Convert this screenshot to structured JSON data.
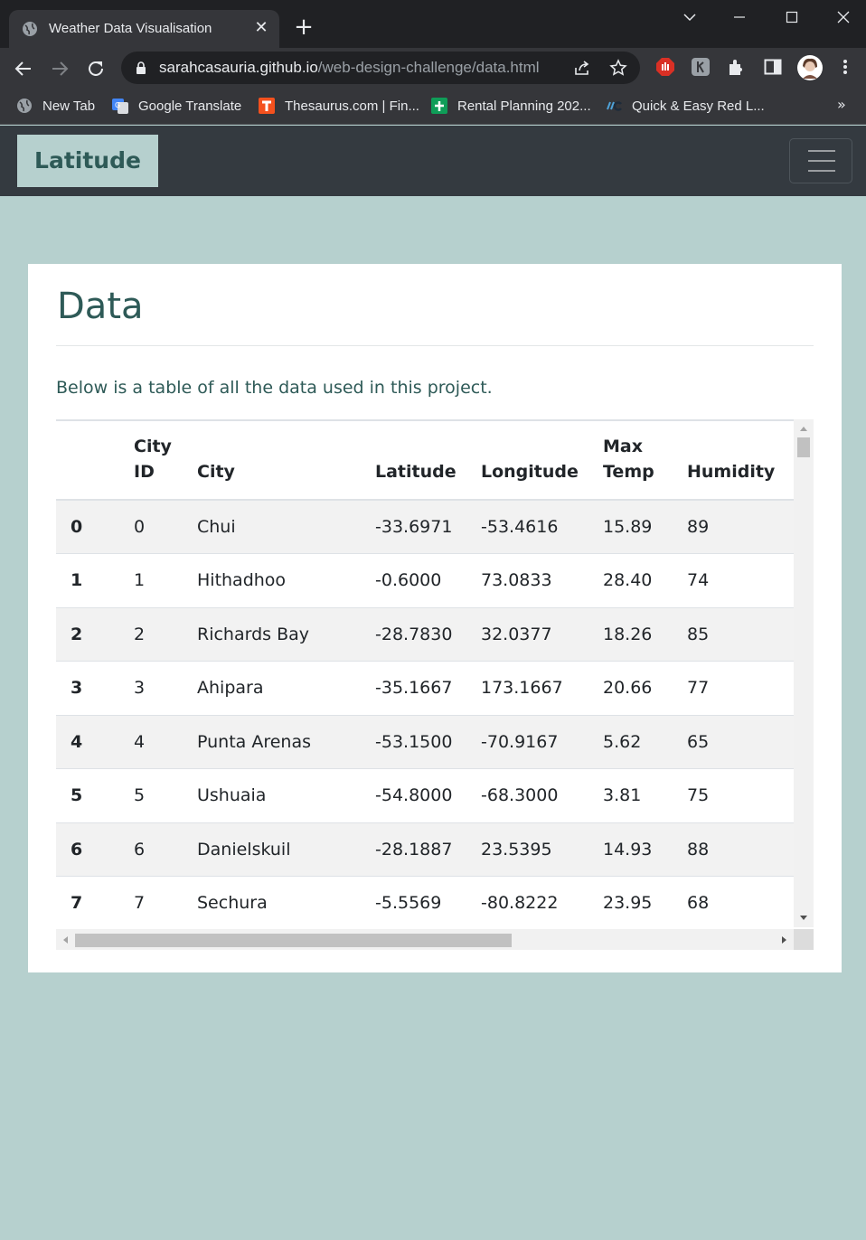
{
  "browser": {
    "tab_title": "Weather Data Visualisation",
    "url_host": "sarahcasauria.github.io",
    "url_path": "/web-design-challenge/data.html",
    "bookmarks": [
      {
        "label": "New Tab",
        "icon": "globe-icon"
      },
      {
        "label": "Google Translate",
        "icon": "google-translate-icon"
      },
      {
        "label": "Thesaurus.com | Fin...",
        "icon": "thesaurus-icon"
      },
      {
        "label": "Rental Planning 202...",
        "icon": "sheets-icon"
      },
      {
        "label": "Quick & Easy Red L...",
        "icon": "qe-icon"
      }
    ],
    "more_bookmarks": "»"
  },
  "site": {
    "brand": "Latitude"
  },
  "page": {
    "heading": "Data",
    "intro": "Below is a table of all the data used in this project."
  },
  "table": {
    "headers": [
      {
        "line1": "",
        "line2": ""
      },
      {
        "line1": "City",
        "line2": "ID"
      },
      {
        "line1": "",
        "line2": "City"
      },
      {
        "line1": "",
        "line2": "Latitude"
      },
      {
        "line1": "",
        "line2": "Longitude"
      },
      {
        "line1": "Max",
        "line2": "Temp"
      },
      {
        "line1": "",
        "line2": "Humidity"
      }
    ],
    "rows": [
      [
        "0",
        "0",
        "Chui",
        "-33.6971",
        "-53.4616",
        "15.89",
        "89"
      ],
      [
        "1",
        "1",
        "Hithadhoo",
        "-0.6000",
        "73.0833",
        "28.40",
        "74"
      ],
      [
        "2",
        "2",
        "Richards Bay",
        "-28.7830",
        "32.0377",
        "18.26",
        "85"
      ],
      [
        "3",
        "3",
        "Ahipara",
        "-35.1667",
        "173.1667",
        "20.66",
        "77"
      ],
      [
        "4",
        "4",
        "Punta Arenas",
        "-53.1500",
        "-70.9167",
        "5.62",
        "65"
      ],
      [
        "5",
        "5",
        "Ushuaia",
        "-54.8000",
        "-68.3000",
        "3.81",
        "75"
      ],
      [
        "6",
        "6",
        "Danielskuil",
        "-28.1887",
        "23.5395",
        "14.93",
        "88"
      ],
      [
        "7",
        "7",
        "Sechura",
        "-5.5569",
        "-80.8222",
        "23.95",
        "68"
      ]
    ]
  },
  "colors": {
    "page_bg": "#b6d0ce",
    "navbar_bg": "#343a40",
    "heading": "#2e5a57",
    "stripe": "#f2f2f2"
  }
}
